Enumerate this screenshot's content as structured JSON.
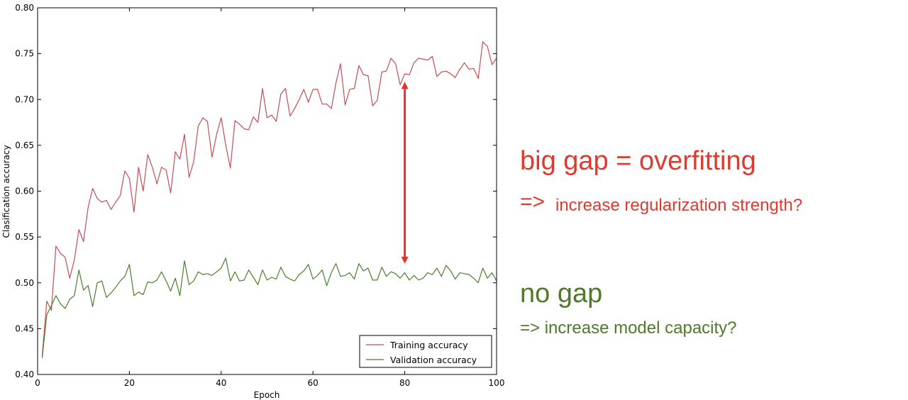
{
  "chart_data": {
    "type": "line",
    "xlabel": "Epoch",
    "ylabel": "Clasification accuracy",
    "xlim": [
      0,
      100
    ],
    "ylim": [
      0.4,
      0.8
    ],
    "xticks": [
      0,
      20,
      40,
      60,
      80,
      100
    ],
    "yticks": [
      0.4,
      0.45,
      0.5,
      0.55,
      0.6,
      0.65,
      0.7,
      0.75,
      0.8
    ],
    "grid": false,
    "legend_position": "lower-right",
    "x": [
      1,
      2,
      3,
      4,
      5,
      6,
      7,
      8,
      9,
      10,
      11,
      12,
      13,
      14,
      15,
      16,
      17,
      18,
      19,
      20,
      21,
      22,
      23,
      24,
      25,
      26,
      27,
      28,
      29,
      30,
      31,
      32,
      33,
      34,
      35,
      36,
      37,
      38,
      39,
      40,
      41,
      42,
      43,
      44,
      45,
      46,
      47,
      48,
      49,
      50,
      51,
      52,
      53,
      54,
      55,
      56,
      57,
      58,
      59,
      60,
      61,
      62,
      63,
      64,
      65,
      66,
      67,
      68,
      69,
      70,
      71,
      72,
      73,
      74,
      75,
      76,
      77,
      78,
      79,
      80,
      81,
      82,
      83,
      84,
      85,
      86,
      87,
      88,
      89,
      90,
      91,
      92,
      93,
      94,
      95,
      96,
      97,
      98,
      99,
      100
    ],
    "series": [
      {
        "name": "Training accuracy",
        "color": "#c44e52",
        "values": [
          0.42,
          0.48,
          0.47,
          0.54,
          0.532,
          0.528,
          0.505,
          0.525,
          0.558,
          0.545,
          0.582,
          0.603,
          0.592,
          0.588,
          0.59,
          0.58,
          0.588,
          0.595,
          0.622,
          0.614,
          0.577,
          0.626,
          0.6,
          0.64,
          0.626,
          0.608,
          0.626,
          0.623,
          0.598,
          0.643,
          0.635,
          0.662,
          0.615,
          0.632,
          0.671,
          0.68,
          0.676,
          0.637,
          0.662,
          0.68,
          0.65,
          0.625,
          0.677,
          0.673,
          0.668,
          0.667,
          0.681,
          0.675,
          0.712,
          0.68,
          0.683,
          0.676,
          0.706,
          0.712,
          0.682,
          0.69,
          0.7,
          0.711,
          0.697,
          0.711,
          0.711,
          0.695,
          0.695,
          0.69,
          0.718,
          0.739,
          0.694,
          0.711,
          0.712,
          0.737,
          0.727,
          0.726,
          0.693,
          0.699,
          0.73,
          0.731,
          0.745,
          0.739,
          0.716,
          0.728,
          0.727,
          0.74,
          0.745,
          0.744,
          0.743,
          0.747,
          0.725,
          0.73,
          0.731,
          0.728,
          0.724,
          0.733,
          0.74,
          0.733,
          0.734,
          0.723,
          0.763,
          0.758,
          0.738,
          0.745
        ]
      },
      {
        "name": "Validation accuracy",
        "color": "#4a7f2c",
        "values": [
          0.418,
          0.465,
          0.475,
          0.486,
          0.477,
          0.472,
          0.482,
          0.486,
          0.514,
          0.492,
          0.497,
          0.474,
          0.5,
          0.502,
          0.484,
          0.489,
          0.495,
          0.502,
          0.507,
          0.52,
          0.486,
          0.49,
          0.487,
          0.501,
          0.5,
          0.503,
          0.512,
          0.502,
          0.491,
          0.505,
          0.486,
          0.524,
          0.498,
          0.502,
          0.512,
          0.509,
          0.51,
          0.508,
          0.512,
          0.516,
          0.527,
          0.502,
          0.512,
          0.502,
          0.503,
          0.514,
          0.506,
          0.498,
          0.514,
          0.503,
          0.506,
          0.504,
          0.517,
          0.507,
          0.504,
          0.502,
          0.509,
          0.513,
          0.52,
          0.504,
          0.508,
          0.514,
          0.497,
          0.511,
          0.521,
          0.507,
          0.508,
          0.511,
          0.504,
          0.521,
          0.513,
          0.516,
          0.503,
          0.503,
          0.517,
          0.507,
          0.512,
          0.51,
          0.505,
          0.511,
          0.503,
          0.508,
          0.503,
          0.505,
          0.511,
          0.509,
          0.516,
          0.507,
          0.519,
          0.513,
          0.504,
          0.511,
          0.51,
          0.509,
          0.505,
          0.5,
          0.516,
          0.505,
          0.511,
          0.502
        ]
      }
    ],
    "gap_arrow": {
      "x": 80,
      "y_top": 0.72,
      "y_bottom": 0.52,
      "color": "#e63228"
    }
  },
  "annotations": {
    "gap_heading": "big gap = overfitting",
    "gap_arrow": "=>",
    "gap_sub": "increase regularization strength?",
    "nogap_heading": "no gap",
    "nogap_sub": "=> increase model capacity?"
  }
}
